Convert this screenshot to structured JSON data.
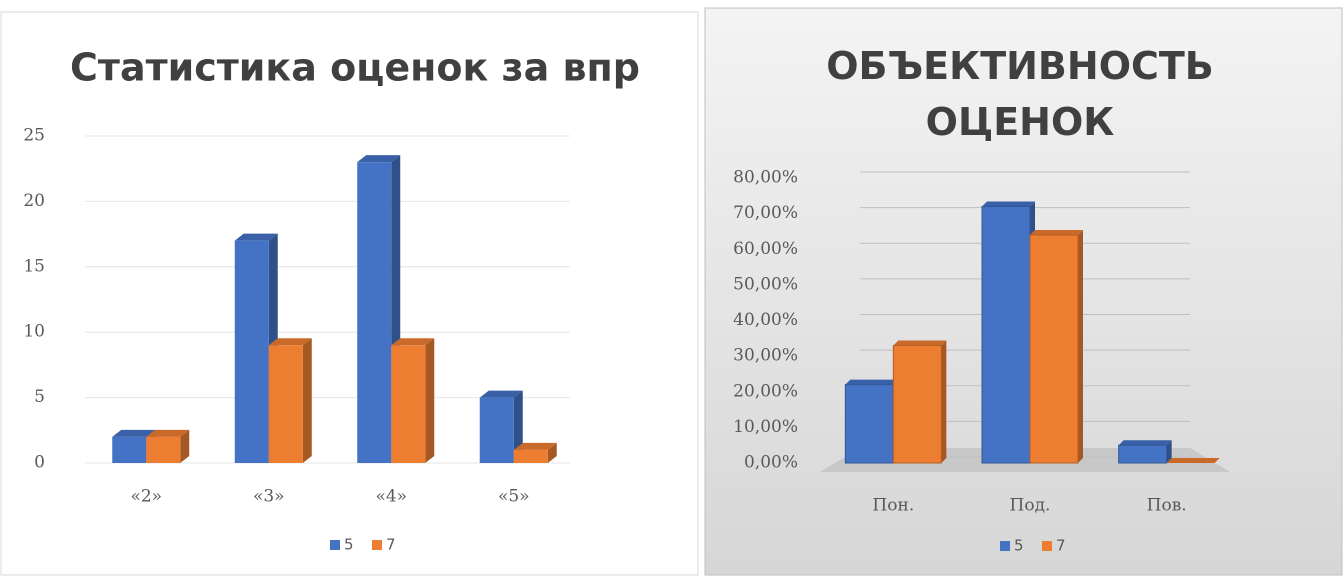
{
  "chart_data": [
    {
      "type": "bar",
      "title": "Статистика оценок за впр",
      "categories": [
        "«2»",
        "«3»",
        "«4»",
        "«5»"
      ],
      "series": [
        {
          "name": "5",
          "color": "#4472c4",
          "values": [
            2,
            17,
            23,
            5
          ]
        },
        {
          "name": "7",
          "color": "#ed7d31",
          "values": [
            2,
            9,
            9,
            1
          ]
        }
      ],
      "ylim": [
        0,
        25
      ],
      "yticks": [
        0,
        5,
        10,
        15,
        20,
        25
      ],
      "grid": true,
      "legend": "bottom"
    },
    {
      "type": "bar",
      "title": "ОБЪЕКТИВНОСТЬ ОЦЕНОК",
      "categories": [
        "Пон.",
        "Под.",
        "Пов."
      ],
      "series": [
        {
          "name": "5",
          "color": "#4472c4",
          "values": [
            22,
            72,
            5
          ]
        },
        {
          "name": "7",
          "color": "#ed7d31",
          "values": [
            33,
            64,
            0
          ]
        }
      ],
      "ylim": [
        0,
        80
      ],
      "yticks": [
        {
          "value": 0,
          "label": "0,00%"
        },
        {
          "value": 10,
          "label": "10,00%"
        },
        {
          "value": 20,
          "label": "20,00%"
        },
        {
          "value": 30,
          "label": "30,00%"
        },
        {
          "value": 40,
          "label": "40,00%"
        },
        {
          "value": 50,
          "label": "50,00%"
        },
        {
          "value": 60,
          "label": "60,00%"
        },
        {
          "value": 70,
          "label": "70,00%"
        },
        {
          "value": 80,
          "label": "80,00%"
        }
      ],
      "grid": true,
      "legend": "bottom"
    }
  ]
}
